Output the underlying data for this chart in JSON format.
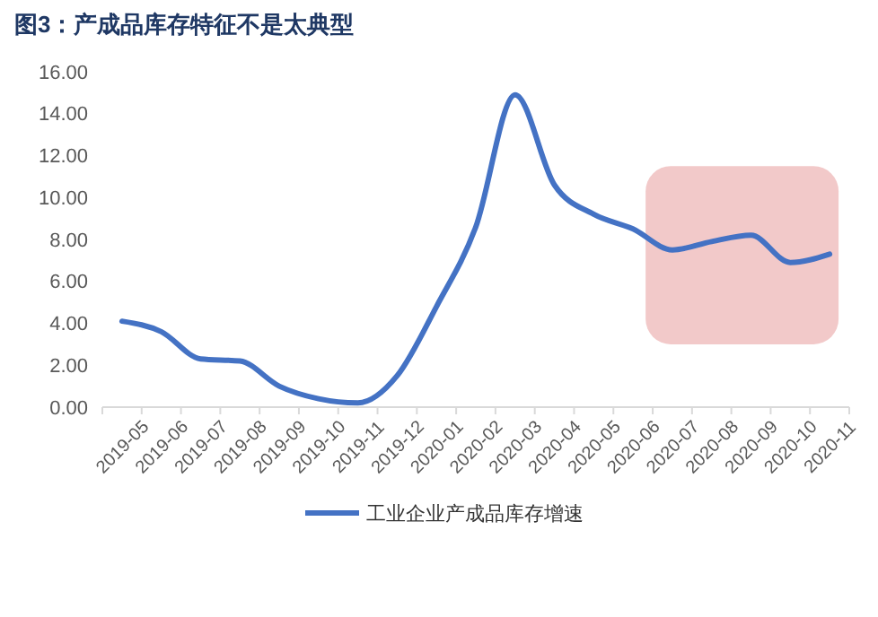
{
  "chart_data": {
    "type": "line",
    "title": "图3：产成品库存特征不是太典型",
    "categories": [
      "2019-05",
      "2019-06",
      "2019-07",
      "2019-08",
      "2019-09",
      "2019-10",
      "2019-11",
      "2019-12",
      "2020-01",
      "2020-02",
      "2020-03",
      "2020-04",
      "2020-05",
      "2020-06",
      "2020-07",
      "2020-08",
      "2020-09",
      "2020-10",
      "2020-11"
    ],
    "series": [
      {
        "name": "工业企业产成品库存增速",
        "color": "#4472c4",
        "values": [
          4.1,
          3.6,
          2.3,
          2.2,
          1.0,
          0.4,
          0.2,
          1.5,
          4.8,
          8.6,
          14.9,
          10.6,
          9.2,
          8.5,
          7.5,
          7.9,
          8.2,
          6.9,
          7.3
        ]
      }
    ],
    "ylim": [
      0,
      16
    ],
    "yticks": [
      {
        "value": 0,
        "label": "0.00"
      },
      {
        "value": 2,
        "label": "2.00"
      },
      {
        "value": 4,
        "label": "4.00"
      },
      {
        "value": 6,
        "label": "6.00"
      },
      {
        "value": 8,
        "label": "8.00"
      },
      {
        "value": 10,
        "label": "10.00"
      },
      {
        "value": 12,
        "label": "12.00"
      },
      {
        "value": 14,
        "label": "14.00"
      },
      {
        "value": 16,
        "label": "16.00"
      }
    ],
    "grid": false,
    "legend": "bottom",
    "marker": "none",
    "line_style": "solid"
  }
}
